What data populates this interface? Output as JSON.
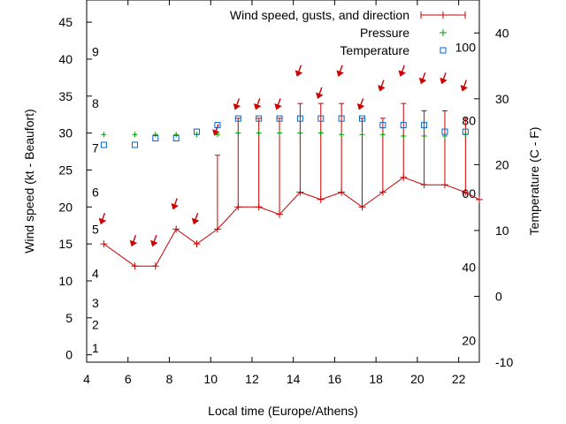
{
  "chart_data": {
    "type": "line",
    "xlabel": "Local time (Europe/Athens)",
    "ylabel": "Wind speed (kt - Beaufort)",
    "y2label": "Temperature (C - F)",
    "xlim": [
      4,
      23
    ],
    "ylim": [
      -1,
      48
    ],
    "y2lim": [
      -10,
      45
    ],
    "x_ticks": [
      4,
      6,
      8,
      10,
      12,
      14,
      16,
      18,
      20,
      22
    ],
    "y_ticks": [
      0,
      5,
      10,
      15,
      20,
      25,
      30,
      35,
      40,
      45
    ],
    "y2_ticks": [
      -10,
      0,
      10,
      20,
      30,
      40
    ],
    "beaufort_labels": [
      {
        "y": 0.9,
        "label": "1"
      },
      {
        "y": 4.1,
        "label": "2"
      },
      {
        "y": 7.0,
        "label": "3"
      },
      {
        "y": 11.0,
        "label": "4"
      },
      {
        "y": 17.0,
        "label": "5"
      },
      {
        "y": 22.0,
        "label": "6"
      },
      {
        "y": 28.0,
        "label": "7"
      },
      {
        "y": 34.0,
        "label": "8"
      },
      {
        "y": 41.0,
        "label": "9"
      }
    ],
    "fahrenheit_labels": [
      {
        "c": -6.7,
        "label": "20"
      },
      {
        "c": 4.4,
        "label": "40"
      },
      {
        "c": 15.6,
        "label": "60"
      },
      {
        "c": 26.7,
        "label": "80"
      },
      {
        "c": 37.8,
        "label": "100"
      }
    ],
    "legend": [
      {
        "label": "Wind speed, gusts, and direction",
        "color": "#cc0000"
      },
      {
        "label": "Pressure",
        "color": "#009900"
      },
      {
        "label": "Temperature",
        "color": "#0066cc"
      }
    ],
    "legend_position": "top-right",
    "grid": false,
    "wind": {
      "x": [
        4.83,
        6.33,
        7.33,
        8.33,
        9.33,
        10.33,
        11.33,
        12.33,
        13.33,
        14.33,
        15.33,
        16.33,
        17.33,
        18.33,
        19.33,
        20.33,
        21.33,
        22.33,
        23
      ],
      "speed": [
        15,
        12,
        12,
        17,
        15,
        17,
        20,
        20,
        19,
        22,
        21,
        22,
        20,
        22,
        24,
        23,
        23,
        22,
        21
      ],
      "gust": [
        null,
        null,
        null,
        null,
        null,
        27,
        32,
        32,
        32,
        34,
        34,
        34,
        32,
        32,
        34,
        33,
        33,
        32,
        null
      ],
      "direction_y": [
        18.5,
        15.5,
        15.5,
        20.5,
        18.5,
        30.5,
        34.0,
        34.0,
        34.0,
        38.5,
        35.5,
        38.5,
        34.0,
        36.5,
        38.5,
        37.5,
        37.5,
        36.5,
        null
      ],
      "direction_deg": [
        200,
        200,
        200,
        200,
        200,
        200,
        200,
        200,
        200,
        200,
        200,
        200,
        200,
        200,
        200,
        200,
        200,
        200,
        null
      ]
    },
    "pressure": {
      "x": [
        4.83,
        6.33,
        7.33,
        8.33,
        9.33,
        10.33,
        11.33,
        12.33,
        13.33,
        14.33,
        15.33,
        16.33,
        17.33,
        18.33,
        19.33,
        20.33,
        21.33,
        22.33
      ],
      "y": [
        29.8,
        29.8,
        29.8,
        29.8,
        29.8,
        29.8,
        30.0,
        30.0,
        30.0,
        30.0,
        30.0,
        29.8,
        29.8,
        29.8,
        29.6,
        29.6,
        29.6,
        29.8
      ]
    },
    "temperature": {
      "x": [
        4.83,
        6.33,
        7.33,
        8.33,
        9.33,
        10.33,
        11.33,
        12.33,
        13.33,
        14.33,
        15.33,
        16.33,
        17.33,
        18.33,
        19.33,
        20.33,
        21.33,
        22.33
      ],
      "y": [
        23,
        23,
        24,
        24,
        25,
        26,
        27,
        27,
        27,
        27,
        27,
        27,
        27,
        26,
        26,
        26,
        25,
        25
      ]
    }
  }
}
